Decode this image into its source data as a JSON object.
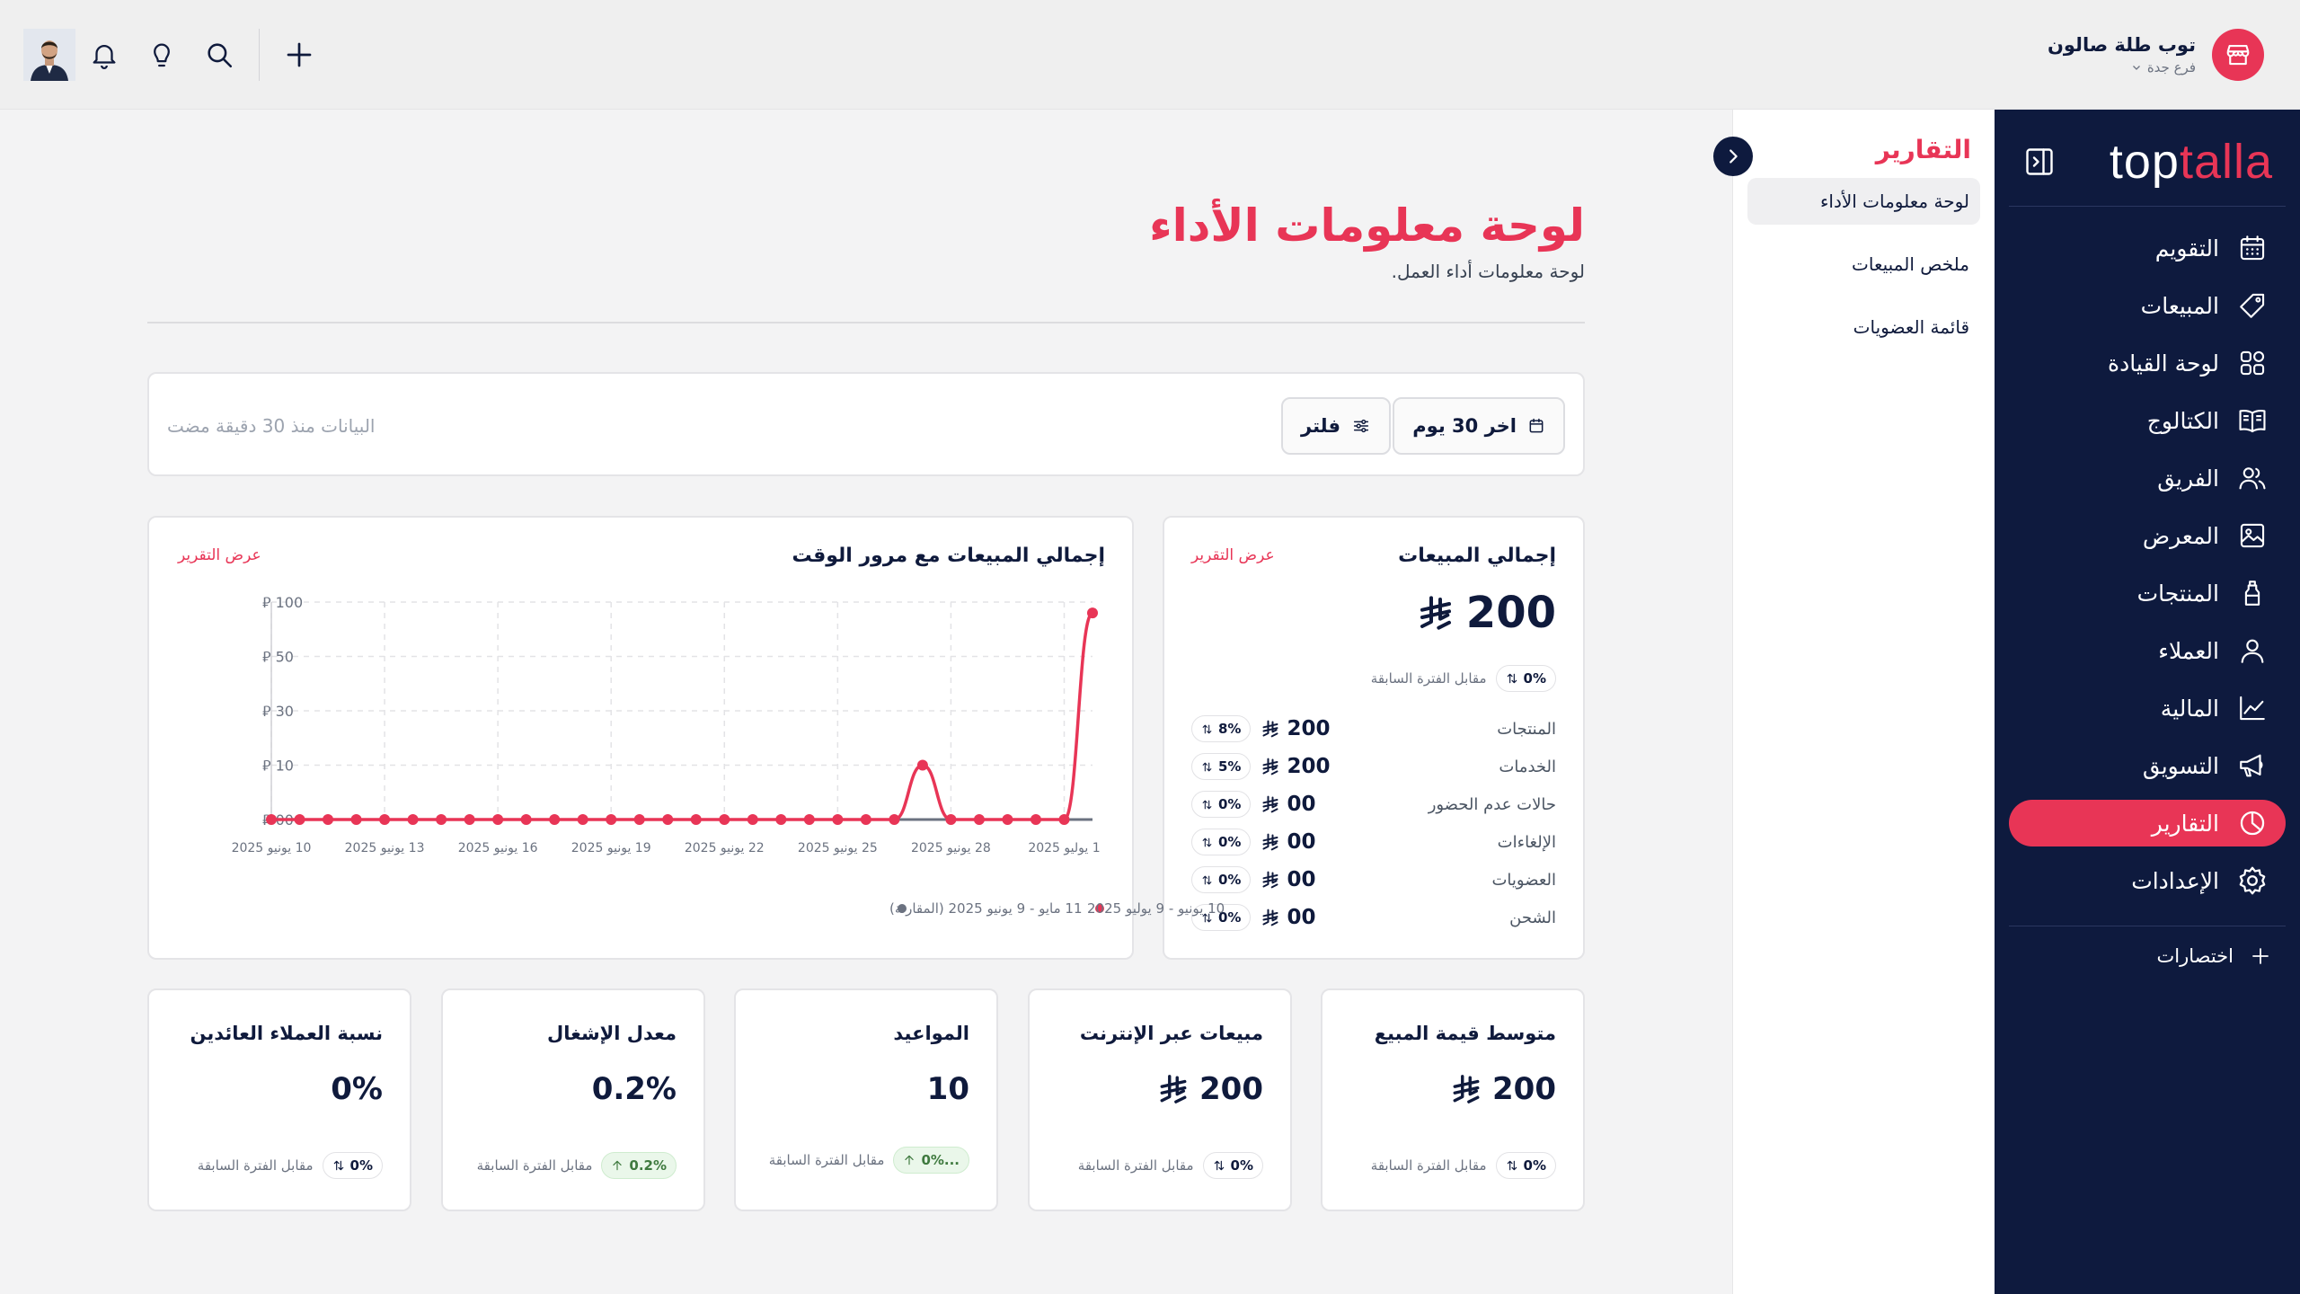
{
  "store": {
    "name": "توب طلة صالون",
    "branch": "فرع جدة"
  },
  "logo": {
    "part1": "top",
    "part2": "talla"
  },
  "sidebar": {
    "items": [
      {
        "label": "التقويم",
        "icon": "calendar-icon"
      },
      {
        "label": "المبيعات",
        "icon": "tag-icon"
      },
      {
        "label": "لوحة القيادة",
        "icon": "grid-icon"
      },
      {
        "label": "الكتالوج",
        "icon": "book-icon"
      },
      {
        "label": "الفريق",
        "icon": "team-icon"
      },
      {
        "label": "المعرض",
        "icon": "image-icon"
      },
      {
        "label": "المنتجات",
        "icon": "bottle-icon"
      },
      {
        "label": "العملاء",
        "icon": "user-icon"
      },
      {
        "label": "المالية",
        "icon": "trend-icon"
      },
      {
        "label": "التسويق",
        "icon": "megaphone-icon"
      },
      {
        "label": "التقارير",
        "icon": "pie-icon",
        "active": true
      },
      {
        "label": "الإعدادات",
        "icon": "gear-icon"
      }
    ],
    "shortcuts": "اختصارات"
  },
  "subnav": {
    "title": "التقارير",
    "items": [
      "لوحة معلومات الأداء",
      "ملخص المبيعات",
      "قائمة العضويات"
    ]
  },
  "page": {
    "title": "لوحة معلومات الأداء",
    "subtitle": "لوحة معلومات أداء العمل."
  },
  "filterbar": {
    "range": "اخر 30 يوم",
    "filter": "فلتر",
    "note": "البيانات منذ 30 دقيقة مضت"
  },
  "summary": {
    "title": "إجمالي المبيعات",
    "link": "عرض التقرير",
    "total": "200",
    "change": "0%",
    "compare": "مقابل الفترة السابقة",
    "rows": [
      {
        "label": "المنتجات",
        "value": "200",
        "pct": "8%"
      },
      {
        "label": "الخدمات",
        "value": "200",
        "pct": "5%"
      },
      {
        "label": "حالات عدم الحضور",
        "value": "00",
        "pct": "0%"
      },
      {
        "label": "الإلغاءات",
        "value": "00",
        "pct": "0%"
      },
      {
        "label": "العضويات",
        "value": "00",
        "pct": "0%"
      },
      {
        "label": "الشحن",
        "value": "00",
        "pct": "0%"
      }
    ]
  },
  "chartcard": {
    "title": "إجمالي المبيعات مع مرور الوقت",
    "link": "عرض التقرير"
  },
  "chart_data": {
    "type": "line",
    "title": "إجمالي المبيعات مع مرور الوقت",
    "y_ticks": [
      "00",
      "10",
      "30",
      "50",
      "100"
    ],
    "x_tick_labels": [
      "10 يونيو 2025",
      "13 يونيو 2025",
      "16 يونيو 2025",
      "19 يونيو 2025",
      "22 يونيو 2025",
      "25 يونيو 2025",
      "28 يونيو 2025",
      "1 يوليو 2025"
    ],
    "series": [
      {
        "name": "10 يونيو - 9 يوليو 2025",
        "color": "#e83556",
        "values": [
          0,
          0,
          0,
          0,
          0,
          0,
          0,
          0,
          0,
          0,
          0,
          0,
          0,
          0,
          0,
          0,
          0,
          0,
          0,
          0,
          0,
          0,
          0,
          10,
          0,
          0,
          0,
          0,
          0,
          90
        ]
      },
      {
        "name": "11 مايو - 9 يونيو 2025 (المقارنة)",
        "color": "#6b7280",
        "values": [
          0,
          0,
          0,
          0,
          0,
          0,
          0,
          0,
          0,
          0,
          0,
          0,
          0,
          0,
          0,
          0,
          0,
          0,
          0,
          0,
          0,
          0,
          0,
          0,
          0,
          0,
          0,
          0,
          0,
          0
        ]
      }
    ],
    "grid": true,
    "legend": "bottom"
  },
  "metrics": [
    {
      "title": "متوسط قيمة المبيع",
      "value": "200",
      "currency": true,
      "pct": "0%",
      "trend": "flat",
      "compare": "مقابل الفترة السابقة"
    },
    {
      "title": "مبيعات عبر الإنترنت",
      "value": "200",
      "currency": true,
      "pct": "0%",
      "trend": "flat",
      "compare": "مقابل الفترة السابقة"
    },
    {
      "title": "المواعيد",
      "value": "10",
      "currency": false,
      "pct": "0%...",
      "trend": "up",
      "compare": "مقابل الفترة السابقة"
    },
    {
      "title": "معدل الإشغال",
      "value": "0.2%",
      "currency": false,
      "pct": "0.2%",
      "trend": "up",
      "compare": "مقابل الفترة السابقة"
    },
    {
      "title": "نسبة العملاء العائدين",
      "value": "0%",
      "currency": false,
      "pct": "0%",
      "trend": "flat",
      "compare": "مقابل الفترة السابقة"
    }
  ],
  "colors": {
    "accent": "#e83556",
    "navy": "#0e1a3e"
  }
}
